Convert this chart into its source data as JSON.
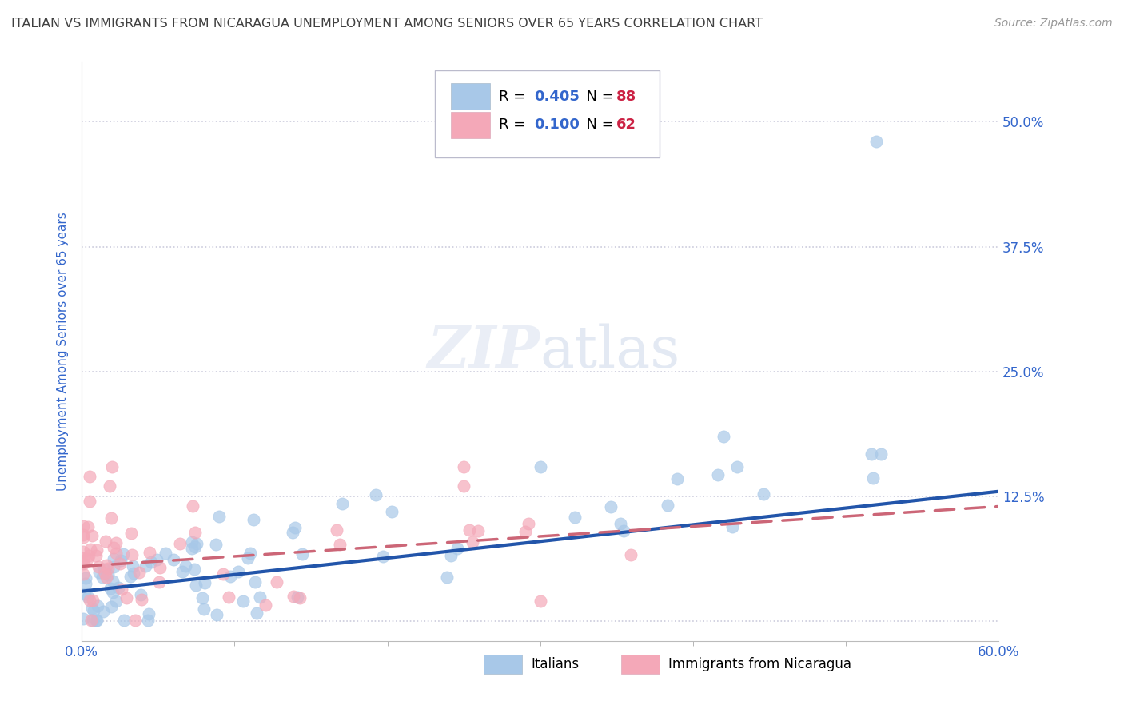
{
  "title": "ITALIAN VS IMMIGRANTS FROM NICARAGUA UNEMPLOYMENT AMONG SENIORS OVER 65 YEARS CORRELATION CHART",
  "source": "Source: ZipAtlas.com",
  "ylabel": "Unemployment Among Seniors over 65 years",
  "series1_label": "Italians",
  "series2_label": "Immigrants from Nicaragua",
  "series1_color": "#a8c8e8",
  "series2_color": "#f4a8b8",
  "series1_line_color": "#2255aa",
  "series2_line_color": "#cc6677",
  "series1_R": 0.405,
  "series1_N": 88,
  "series2_R": 0.1,
  "series2_N": 62,
  "R_color": "#3366cc",
  "N_color": "#cc2244",
  "title_color": "#404040",
  "source_color": "#999999",
  "axis_tick_color": "#3366cc",
  "watermark": "ZIPatlas",
  "xlim": [
    0.0,
    0.6
  ],
  "ylim": [
    -0.02,
    0.56
  ],
  "xtick_vals": [
    0.0,
    0.6
  ],
  "xtick_labels": [
    "0.0%",
    "60.0%"
  ],
  "ytick_vals": [
    0.0,
    0.125,
    0.25,
    0.375,
    0.5
  ],
  "ytick_labels": [
    "",
    "12.5%",
    "25.0%",
    "37.5%",
    "50.0%"
  ],
  "grid_color": "#ccccdd",
  "background_color": "#ffffff"
}
